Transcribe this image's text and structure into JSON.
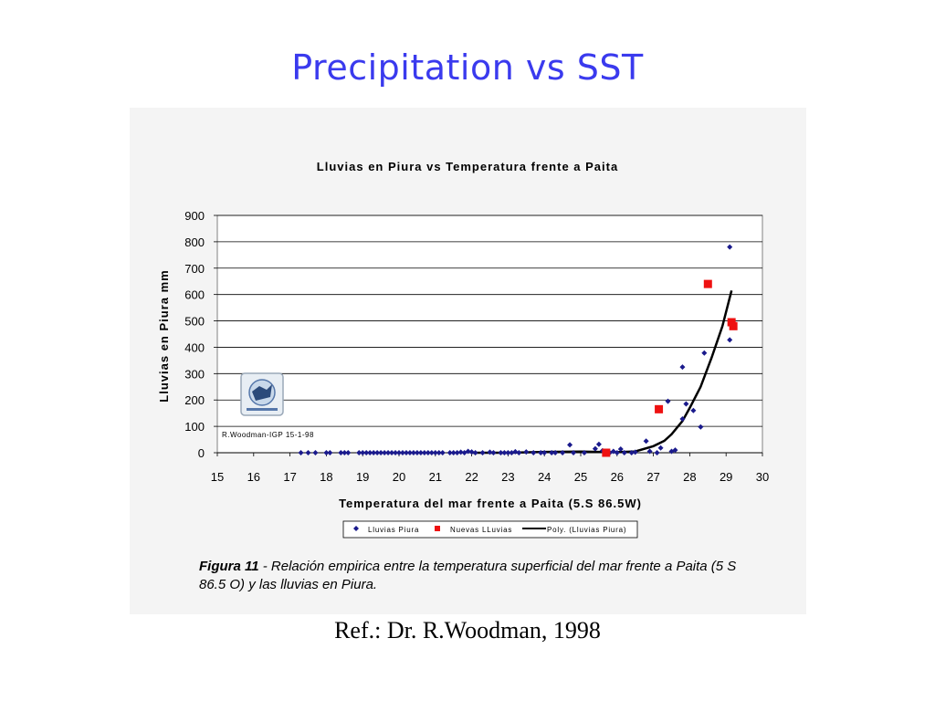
{
  "slide": {
    "title": "Precipitation vs SST",
    "reference": "Ref.: Dr. R.Woodman, 1998"
  },
  "figure": {
    "caption_bold": "Figura 11",
    "caption_text": " - Relación empirica entre la temperatura superficial del mar frente a Paita (5 S 86.5 O) y las lluvias en Piura",
    "caption_end": ".",
    "watermark": "R.Woodman-IGP 15-1-98",
    "logo_icon": "institute-logo-icon"
  },
  "chart_data": {
    "type": "scatter",
    "title": "Lluvias en Piura vs Temperatura frente a Paita",
    "xlabel": "Temperatura del mar  frente a Paita (5.S 86.5W)",
    "ylabel": "Lluvias en Piura mm",
    "xlim": [
      15,
      30
    ],
    "ylim": [
      0,
      900
    ],
    "xticks": [
      "15",
      "16",
      "17",
      "18",
      "19",
      "20",
      "21",
      "22",
      "23",
      "24",
      "25",
      "26",
      "27",
      "28",
      "29",
      "30"
    ],
    "yticks": [
      "0",
      "100",
      "200",
      "300",
      "400",
      "500",
      "600",
      "700",
      "800",
      "900"
    ],
    "grid": "horizontal",
    "legend_position": "bottom",
    "series": [
      {
        "name": "Lluvias Piura",
        "marker": "diamond",
        "color": "#1a1a8c",
        "points": [
          [
            17.3,
            0
          ],
          [
            17.5,
            0
          ],
          [
            17.7,
            0
          ],
          [
            18.0,
            0
          ],
          [
            18.1,
            0
          ],
          [
            18.4,
            0
          ],
          [
            18.5,
            0
          ],
          [
            18.6,
            0
          ],
          [
            18.9,
            0
          ],
          [
            19.0,
            0
          ],
          [
            19.1,
            0
          ],
          [
            19.2,
            0
          ],
          [
            19.3,
            0
          ],
          [
            19.4,
            0
          ],
          [
            19.5,
            0
          ],
          [
            19.6,
            0
          ],
          [
            19.7,
            0
          ],
          [
            19.8,
            0
          ],
          [
            19.9,
            0
          ],
          [
            20.0,
            0
          ],
          [
            20.1,
            0
          ],
          [
            20.2,
            0
          ],
          [
            20.3,
            0
          ],
          [
            20.4,
            0
          ],
          [
            20.5,
            0
          ],
          [
            20.6,
            0
          ],
          [
            20.7,
            0
          ],
          [
            20.8,
            0
          ],
          [
            20.9,
            0
          ],
          [
            21.0,
            0
          ],
          [
            21.1,
            0
          ],
          [
            21.2,
            0
          ],
          [
            21.4,
            0
          ],
          [
            21.5,
            0
          ],
          [
            21.6,
            0
          ],
          [
            21.7,
            2
          ],
          [
            21.8,
            0
          ],
          [
            21.9,
            5
          ],
          [
            22.0,
            3
          ],
          [
            22.1,
            0
          ],
          [
            22.3,
            0
          ],
          [
            22.5,
            2
          ],
          [
            22.6,
            0
          ],
          [
            22.8,
            0
          ],
          [
            22.9,
            0
          ],
          [
            23.0,
            0
          ],
          [
            23.1,
            0
          ],
          [
            23.2,
            4
          ],
          [
            23.3,
            0
          ],
          [
            23.5,
            3
          ],
          [
            23.7,
            0
          ],
          [
            23.9,
            0
          ],
          [
            24.0,
            0
          ],
          [
            24.2,
            0
          ],
          [
            24.3,
            0
          ],
          [
            24.5,
            0
          ],
          [
            24.7,
            30
          ],
          [
            24.8,
            0
          ],
          [
            25.1,
            0
          ],
          [
            25.4,
            15
          ],
          [
            25.5,
            32
          ],
          [
            25.6,
            8
          ],
          [
            25.8,
            0
          ],
          [
            25.9,
            5
          ],
          [
            26.0,
            0
          ],
          [
            26.1,
            14
          ],
          [
            26.2,
            0
          ],
          [
            26.4,
            0
          ],
          [
            26.5,
            2
          ],
          [
            26.8,
            44
          ],
          [
            26.9,
            5
          ],
          [
            27.1,
            0
          ],
          [
            27.2,
            18
          ],
          [
            27.4,
            195
          ],
          [
            27.5,
            5
          ],
          [
            27.6,
            10
          ],
          [
            27.8,
            128
          ],
          [
            27.8,
            325
          ],
          [
            27.9,
            185
          ],
          [
            28.1,
            160
          ],
          [
            28.3,
            98
          ],
          [
            28.4,
            378
          ],
          [
            29.1,
            780
          ],
          [
            29.1,
            428
          ]
        ]
      },
      {
        "name": "Nuevas LLuvias",
        "marker": "square",
        "color": "#ee1111",
        "points": [
          [
            25.7,
            0
          ],
          [
            27.15,
            165
          ],
          [
            28.5,
            640
          ],
          [
            29.15,
            495
          ],
          [
            29.2,
            480
          ]
        ]
      },
      {
        "name": "Poly. (Lluvias Piura)",
        "marker": "line",
        "color": "#000000",
        "points": [
          [
            22.0,
            0
          ],
          [
            23.0,
            0
          ],
          [
            24.0,
            3
          ],
          [
            25.0,
            4
          ],
          [
            25.5,
            3
          ],
          [
            26.0,
            2
          ],
          [
            26.5,
            5
          ],
          [
            27.0,
            25
          ],
          [
            27.3,
            45
          ],
          [
            27.5,
            70
          ],
          [
            27.8,
            120
          ],
          [
            28.0,
            170
          ],
          [
            28.3,
            250
          ],
          [
            28.6,
            360
          ],
          [
            28.9,
            480
          ],
          [
            29.15,
            615
          ]
        ]
      }
    ]
  }
}
